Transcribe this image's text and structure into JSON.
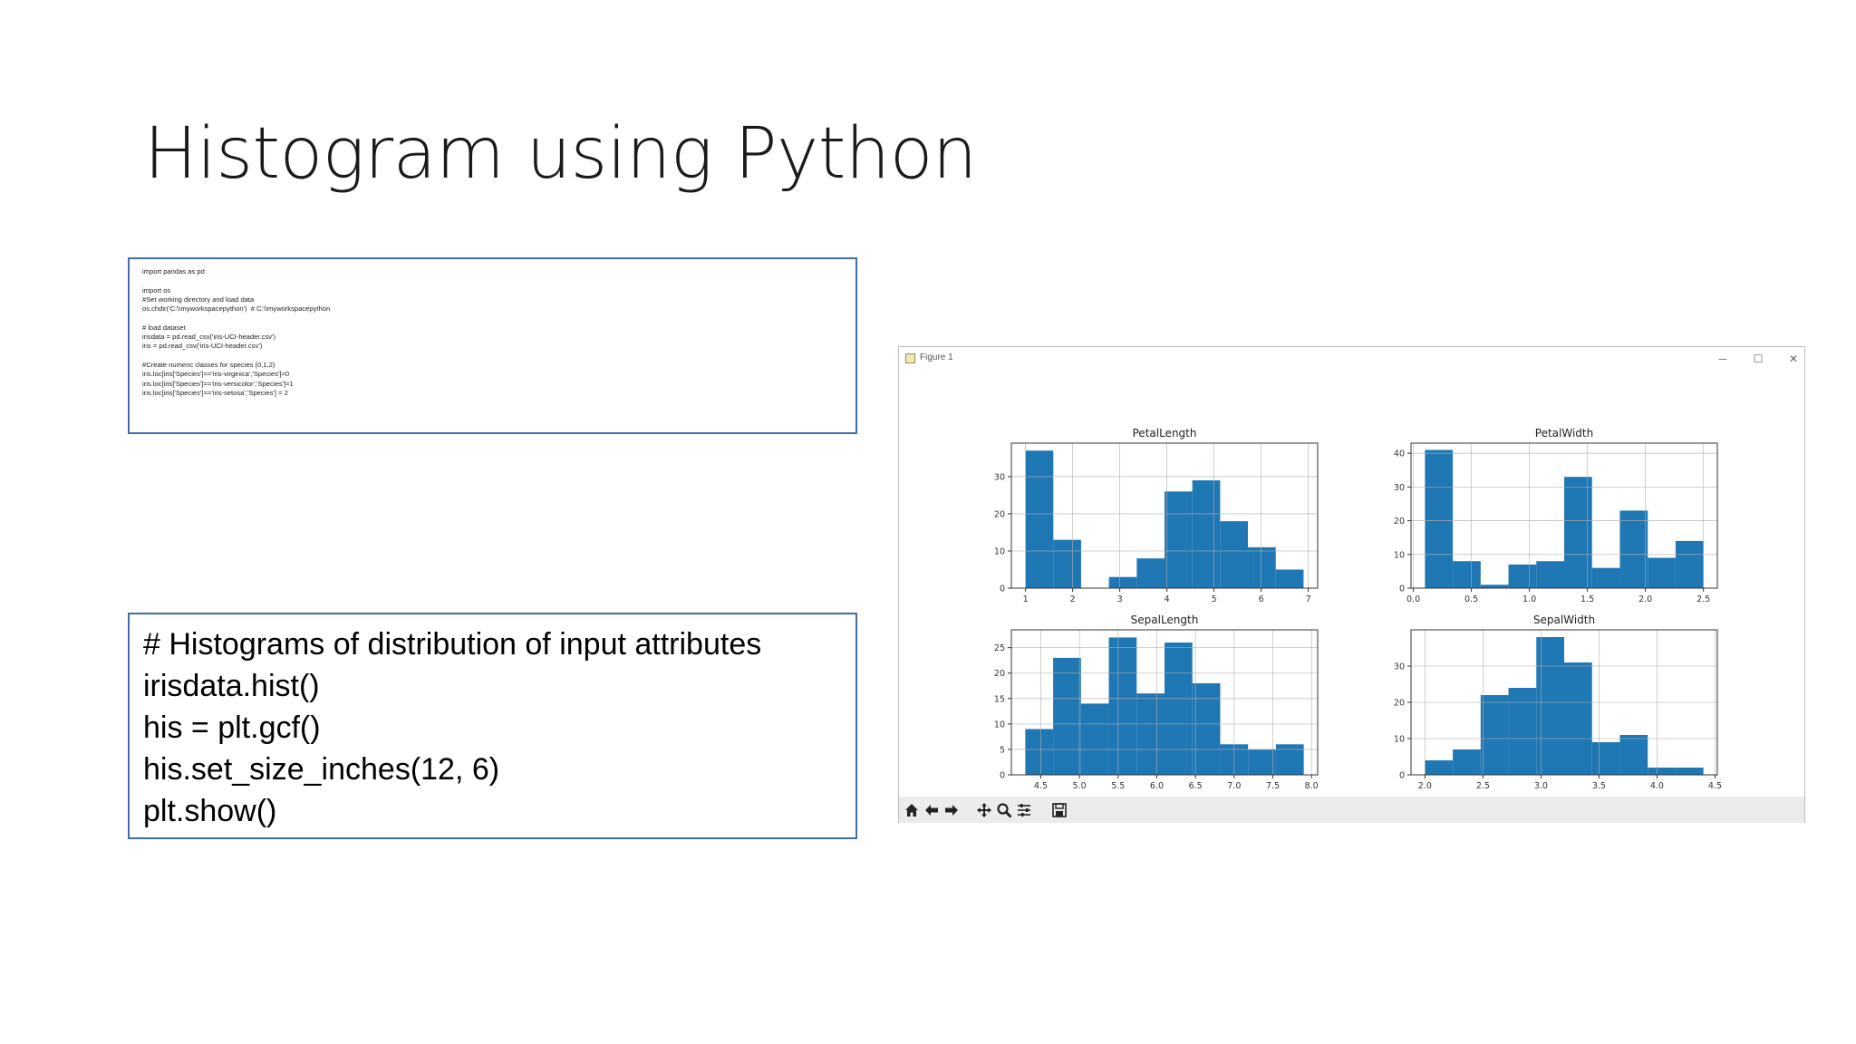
{
  "slide": {
    "title": "Histogram using Python"
  },
  "code_small": {
    "lines": [
      "import pandas as pd",
      "",
      "import os",
      "#Set working directory and load data",
      "os.chdir('C:\\\\myworkspacepython')  # C:\\\\myworkspacepython",
      "",
      "# load dataset",
      "irisdata = pd.read_csv('iris-UCI-header.csv')",
      "iris = pd.read_csv('iris-UCI-header.csv')",
      "",
      "#Create numeric classes for species (0,1,2)",
      "iris.loc[iris['Species']=='iris-virginica','Species']=0",
      "iris.loc[iris['Species']=='iris-versicolor','Species']=1",
      "iris.loc[iris['Species']=='iris-setosa','Species'] = 2"
    ]
  },
  "code_large": {
    "lines": [
      "# Histograms of distribution of input attributes",
      "irisdata.hist()",
      "his = plt.gcf()",
      "his.set_size_inches(12, 6)",
      "plt.show()"
    ]
  },
  "figure_window": {
    "title": "Figure 1",
    "controls": {
      "minimize": "─",
      "maximize": "☐",
      "close": "✕"
    },
    "toolbar": [
      {
        "name": "home-icon",
        "glyph": "home"
      },
      {
        "name": "back-icon",
        "glyph": "back"
      },
      {
        "name": "forward-icon",
        "glyph": "forward"
      },
      {
        "name": "pan-icon",
        "glyph": "pan"
      },
      {
        "name": "zoom-icon",
        "glyph": "zoom"
      },
      {
        "name": "configure-subplots-icon",
        "glyph": "subplots"
      },
      {
        "name": "save-icon",
        "glyph": "save"
      }
    ],
    "bar_color": "#1f77b4"
  },
  "chart_data": [
    {
      "type": "bar",
      "title": "PetalLength",
      "bin_edges": [
        1.0,
        1.59,
        2.18,
        2.77,
        3.36,
        3.95,
        4.54,
        5.13,
        5.72,
        6.31,
        6.9
      ],
      "values": [
        37,
        13,
        0,
        3,
        8,
        26,
        29,
        18,
        11,
        5
      ],
      "xlim": [
        0.7,
        7.2
      ],
      "ylim": [
        0,
        39
      ],
      "xticks": [
        1,
        2,
        3,
        4,
        5,
        6,
        7
      ],
      "xtick_labels": [
        "1",
        "2",
        "3",
        "4",
        "5",
        "6",
        "7"
      ],
      "yticks": [
        0,
        10,
        20,
        30
      ],
      "ytick_labels": [
        "0",
        "10",
        "20",
        "30"
      ],
      "grid": true
    },
    {
      "type": "bar",
      "title": "PetalWidth",
      "bin_edges": [
        0.1,
        0.34,
        0.58,
        0.82,
        1.06,
        1.3,
        1.54,
        1.78,
        2.02,
        2.26,
        2.5
      ],
      "values": [
        41,
        8,
        1,
        7,
        8,
        33,
        6,
        23,
        9,
        14
      ],
      "xlim": [
        -0.02,
        2.62
      ],
      "ylim": [
        0,
        43
      ],
      "xticks": [
        0.0,
        0.5,
        1.0,
        1.5,
        2.0,
        2.5
      ],
      "xtick_labels": [
        "0.0",
        "0.5",
        "1.0",
        "1.5",
        "2.0",
        "2.5"
      ],
      "yticks": [
        0,
        10,
        20,
        30,
        40
      ],
      "ytick_labels": [
        "0",
        "10",
        "20",
        "30",
        "40"
      ],
      "grid": true
    },
    {
      "type": "bar",
      "title": "SepalLength",
      "bin_edges": [
        4.3,
        4.66,
        5.02,
        5.38,
        5.74,
        6.1,
        6.46,
        6.82,
        7.18,
        7.54,
        7.9
      ],
      "values": [
        9,
        23,
        14,
        27,
        16,
        26,
        18,
        6,
        5,
        6
      ],
      "xlim": [
        4.12,
        8.08
      ],
      "ylim": [
        0,
        28.5
      ],
      "xticks": [
        4.5,
        5.0,
        5.5,
        6.0,
        6.5,
        7.0,
        7.5,
        8.0
      ],
      "xtick_labels": [
        "4.5",
        "5.0",
        "5.5",
        "6.0",
        "6.5",
        "7.0",
        "7.5",
        "8.0"
      ],
      "yticks": [
        0,
        5,
        10,
        15,
        20,
        25
      ],
      "ytick_labels": [
        "0",
        "5",
        "10",
        "15",
        "20",
        "25"
      ],
      "grid": true
    },
    {
      "type": "bar",
      "title": "SepalWidth",
      "bin_edges": [
        2.0,
        2.24,
        2.48,
        2.72,
        2.96,
        3.2,
        3.44,
        3.68,
        3.92,
        4.16,
        4.4
      ],
      "values": [
        4,
        7,
        22,
        24,
        38,
        31,
        9,
        11,
        2,
        2
      ],
      "xlim": [
        1.88,
        4.52
      ],
      "ylim": [
        0,
        40
      ],
      "xticks": [
        2.0,
        2.5,
        3.0,
        3.5,
        4.0,
        4.5
      ],
      "xtick_labels": [
        "2.0",
        "2.5",
        "3.0",
        "3.5",
        "4.0",
        "4.5"
      ],
      "yticks": [
        0,
        10,
        20,
        30
      ],
      "ytick_labels": [
        "0",
        "10",
        "20",
        "30"
      ],
      "grid": true
    }
  ]
}
